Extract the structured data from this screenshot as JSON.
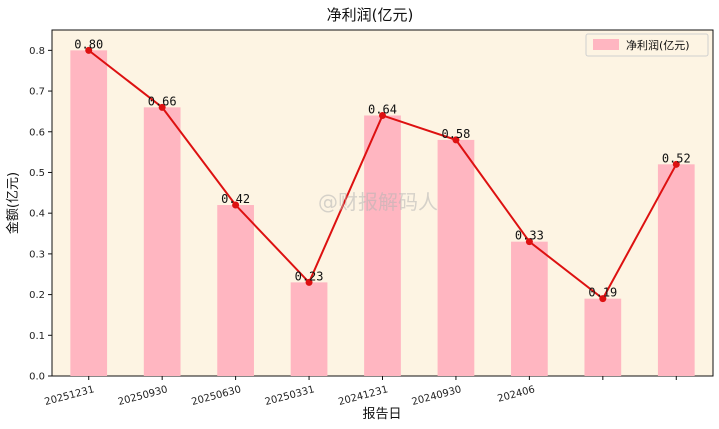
{
  "watermark": "@财报解码人",
  "chart_data": {
    "type": "bar",
    "title": "净利润(亿元)",
    "xlabel": "报告日",
    "ylabel": "金额(亿元)",
    "categories": [
      "20251231",
      "20250930",
      "20250630",
      "20250331",
      "20241231",
      "20240930",
      "202406",
      "",
      ""
    ],
    "values": [
      0.8,
      0.66,
      0.42,
      0.23,
      0.64,
      0.58,
      0.33,
      0.19,
      0.52
    ],
    "data_labels": [
      "0.80",
      "0.66",
      "0.42",
      "0.23",
      "0.64",
      "0.58",
      "0.33",
      "0.19",
      "0.52"
    ],
    "series": [
      {
        "name": "净利润(亿元)",
        "values": [
          0.8,
          0.66,
          0.42,
          0.23,
          0.64,
          0.58,
          0.33,
          0.19,
          0.52
        ]
      }
    ],
    "line_overlay": true,
    "ylim": [
      0,
      0.85
    ],
    "yticks": [
      "0.0",
      "0.1",
      "0.2",
      "0.3",
      "0.4",
      "0.5",
      "0.6",
      "0.7",
      "0.8"
    ],
    "grid": false,
    "legend_position": "top-right",
    "colors": {
      "bar": "#ffb6c1",
      "line": "#dd1111",
      "plot_bg": "#fdf4e3"
    }
  }
}
